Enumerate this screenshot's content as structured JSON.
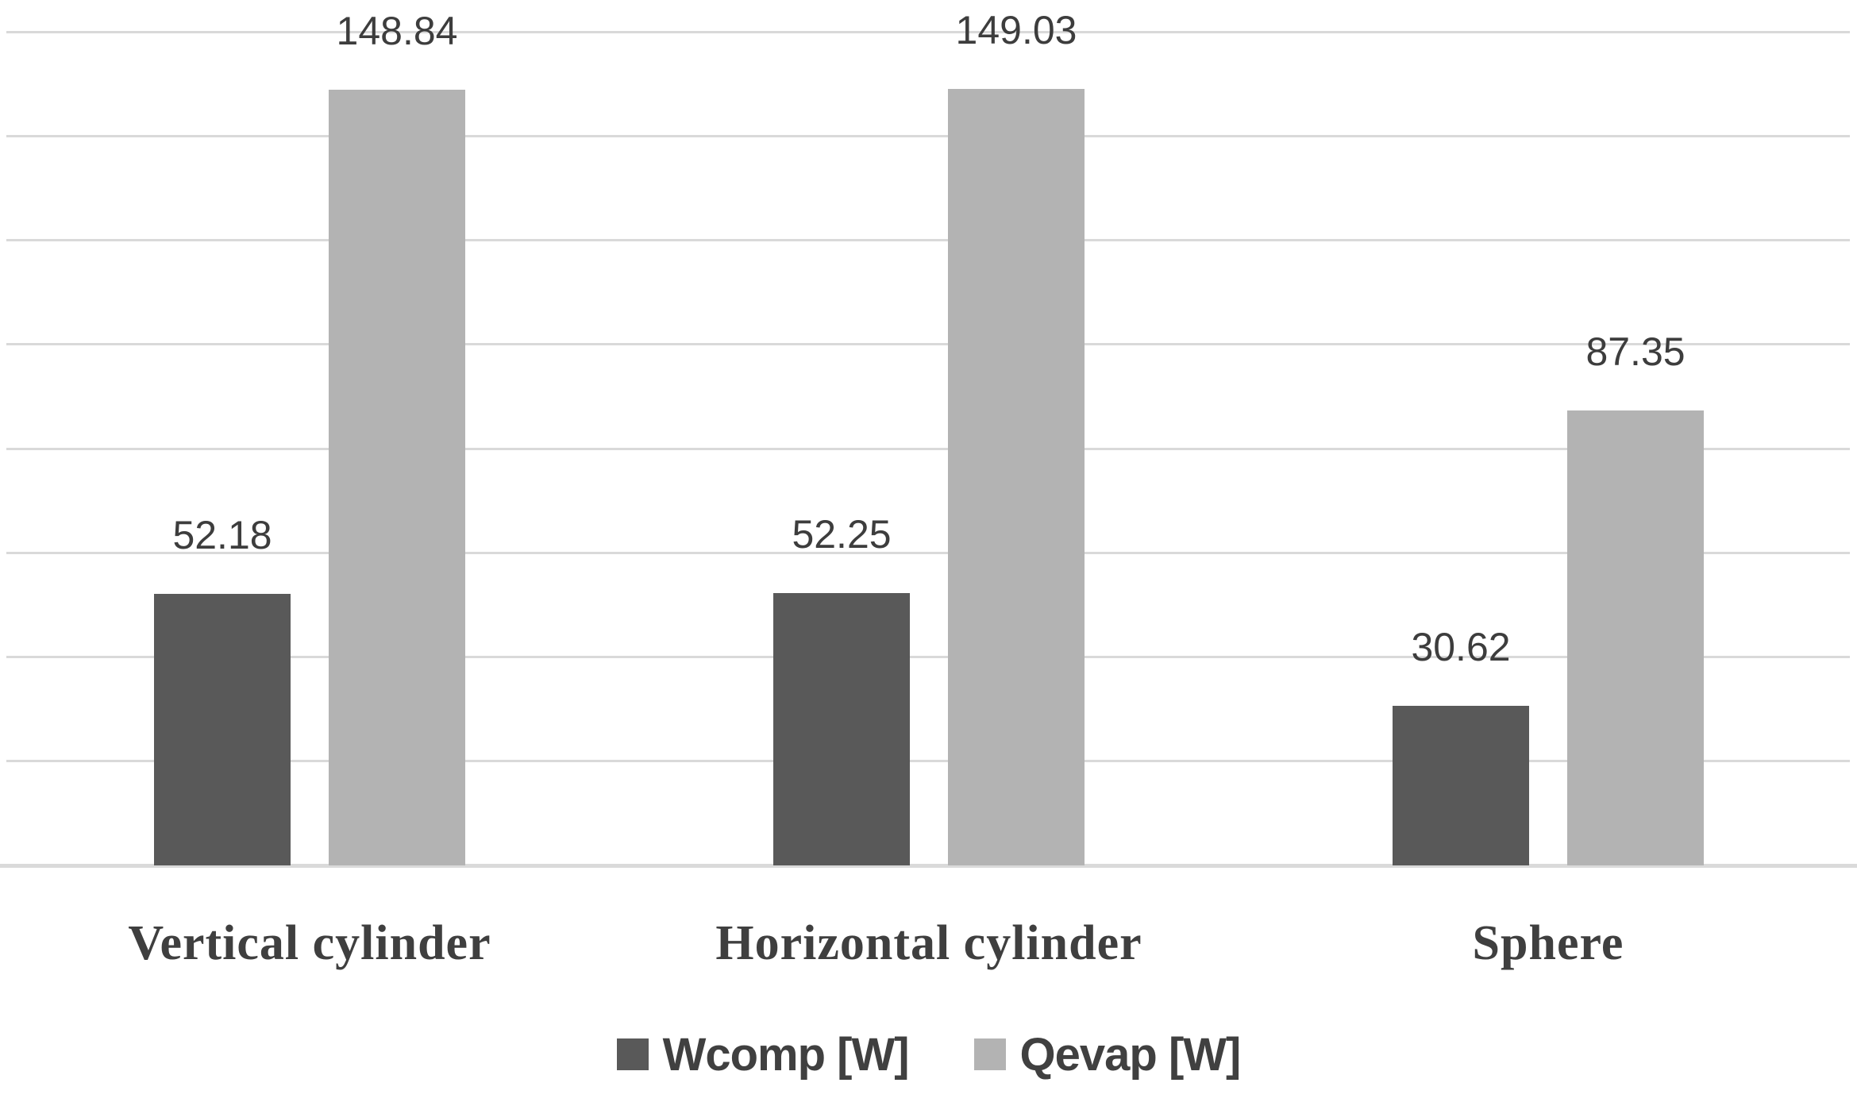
{
  "chart_data": {
    "type": "bar",
    "categories": [
      "Vertical cylinder",
      "Horizontal cylinder",
      "Sphere"
    ],
    "series": [
      {
        "name": "Wcomp [W]",
        "color": "#595959",
        "values": [
          52.18,
          52.25,
          30.62
        ]
      },
      {
        "name": "Qevap [W]",
        "color": "#b3b3b3",
        "values": [
          148.84,
          149.03,
          87.35
        ]
      }
    ],
    "title": "",
    "xlabel": "",
    "ylabel": "",
    "ylim": [
      0,
      160
    ],
    "gridline_step": 20,
    "grid": true,
    "y_tick_labels_visible": false,
    "legend_position": "bottom",
    "data_labels": true
  },
  "colors": {
    "gridline": "#d9d9d9",
    "axis_line": "#dadada",
    "value_label_text": "#3d3d3d",
    "category_text": "#3f3f3f",
    "legend_text": "#404040",
    "background": "#ffffff"
  }
}
